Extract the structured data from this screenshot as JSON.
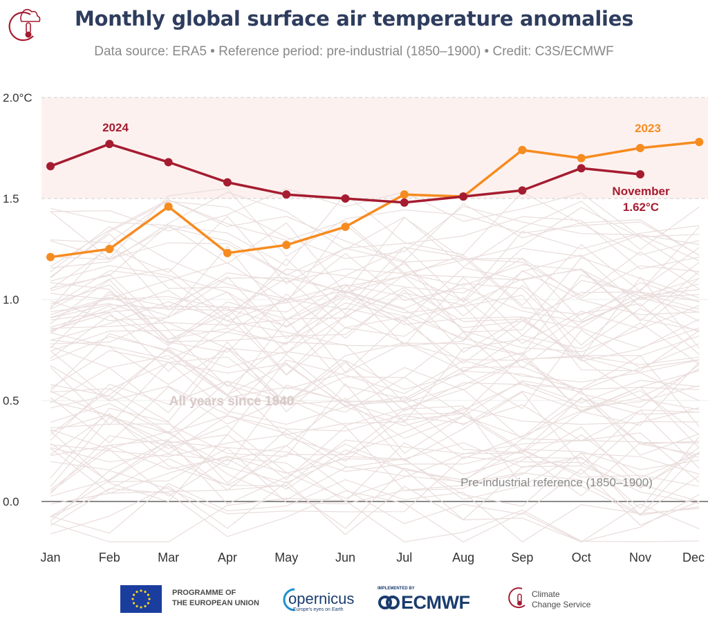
{
  "header": {
    "title": "Monthly global surface air temperature anomalies",
    "subtitle": "Data source: ERA5 • Reference period: pre-industrial (1850–1900) • Credit: C3S/ECMWF"
  },
  "chart_data": {
    "type": "line",
    "x": [
      "Jan",
      "Feb",
      "Mar",
      "Apr",
      "May",
      "Jun",
      "Jul",
      "Aug",
      "Sep",
      "Oct",
      "Nov",
      "Dec"
    ],
    "y_ticks": [
      "2.0°C",
      "1.5",
      "1.0",
      "0.5",
      "0.0"
    ],
    "y_tick_values": [
      2.0,
      1.5,
      1.0,
      0.5,
      0.0
    ],
    "ylim": [
      -0.2,
      2.0
    ],
    "grid": "horizontal",
    "highlight_band": [
      1.5,
      2.0
    ],
    "series": [
      {
        "name": "2024",
        "color": "#a51c30",
        "values": [
          1.66,
          1.77,
          1.68,
          1.58,
          1.52,
          1.5,
          1.48,
          1.51,
          1.54,
          1.65,
          1.62,
          null
        ]
      },
      {
        "name": "2023",
        "color": "#f68b1f",
        "values": [
          1.21,
          1.25,
          1.46,
          1.23,
          1.27,
          1.36,
          1.52,
          1.51,
          1.74,
          1.7,
          1.75,
          1.78
        ]
      }
    ],
    "background_series_label": "All years since 1940",
    "background_color": "#e9dddb",
    "reference_label": "Pre-industrial reference (1850–1900)",
    "annotation": {
      "month": "November",
      "value": "1.62°C"
    }
  },
  "footer": {
    "eu_text": "PROGRAMME OF\nTHE EUROPEAN UNION",
    "copernicus_word": "opernicus",
    "copernicus_tagline": "Europe's eyes on Earth",
    "implemented_by": "IMPLEMENTED BY",
    "ecmwf": "ECMWF",
    "c3s_text": "Climate\nChange Service"
  },
  "colors": {
    "title": "#2e3d5e",
    "accent_2024": "#a51c30",
    "accent_2023": "#f68b1f",
    "band": "#fdf1ef"
  }
}
